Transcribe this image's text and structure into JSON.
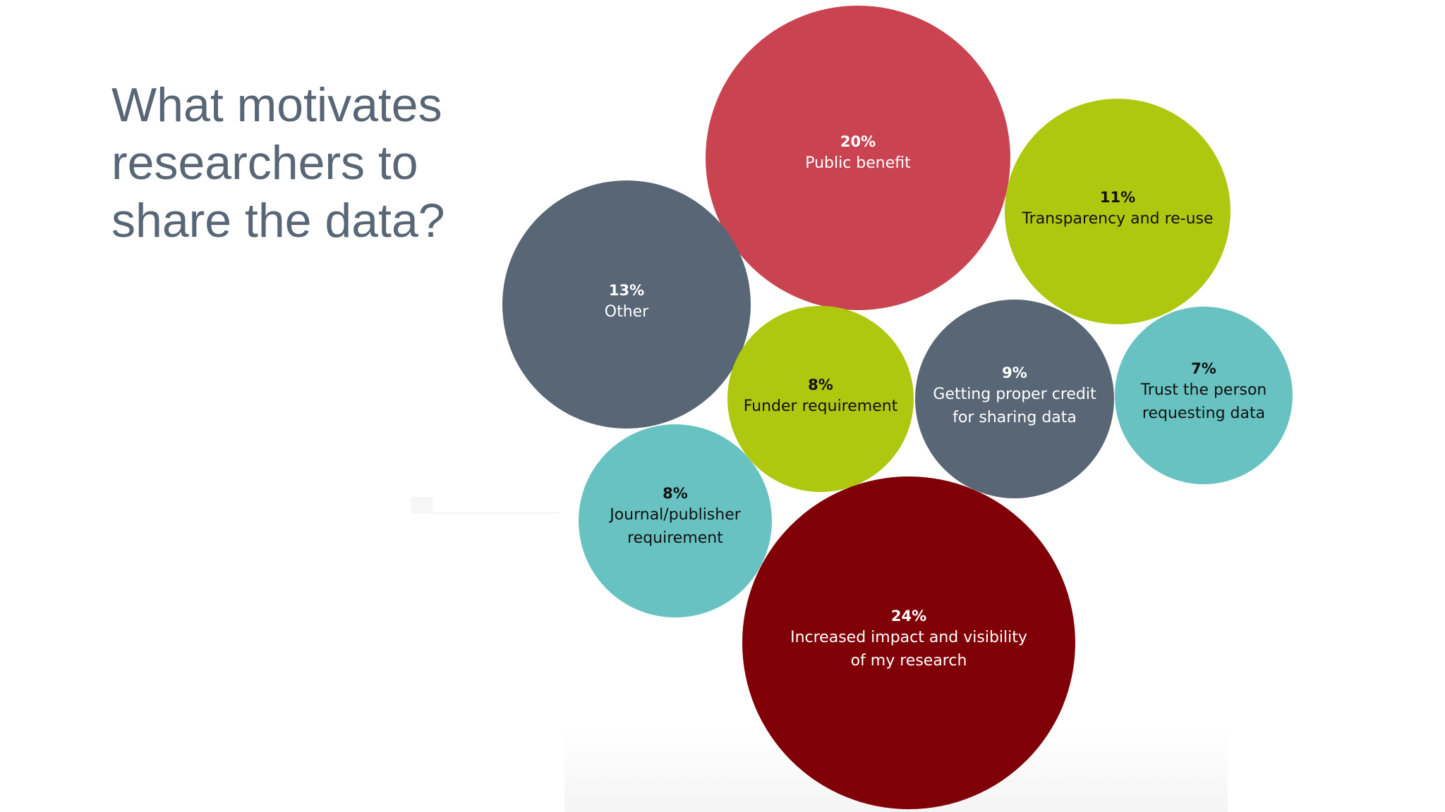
{
  "slide": {
    "title_lines": [
      "What motivates",
      "researchers to",
      "share the data?"
    ]
  },
  "colors": {
    "title": "#586675",
    "crimson": "#c94450",
    "dark_red": "#800007",
    "lime": "#adc80e",
    "slate": "#586675",
    "teal": "#69c2c2"
  },
  "chart_data": {
    "type": "bubble",
    "title": "",
    "series": [
      {
        "label": "Public benefit",
        "pct": "20%",
        "value": 20,
        "color": "#c94450",
        "text_color": "#ffffff",
        "label_lines": [
          "Public benefit"
        ]
      },
      {
        "label": "Transparency and re-use",
        "pct": "11%",
        "value": 11,
        "color": "#adc80e",
        "text_color": "#111111",
        "label_lines": [
          "Transparency and re-use"
        ]
      },
      {
        "label": "Other",
        "pct": "13%",
        "value": 13,
        "color": "#586675",
        "text_color": "#ffffff",
        "label_lines": [
          "Other"
        ]
      },
      {
        "label": "Funder requirement",
        "pct": "8%",
        "value": 8,
        "color": "#adc80e",
        "text_color": "#111111",
        "label_lines": [
          "Funder requirement"
        ]
      },
      {
        "label": "Getting proper credit for sharing data",
        "pct": "9%",
        "value": 9,
        "color": "#586675",
        "text_color": "#ffffff",
        "label_lines": [
          "Getting proper credit",
          "for sharing data"
        ]
      },
      {
        "label": "Trust the person requesting data",
        "pct": "7%",
        "value": 7,
        "color": "#69c2c2",
        "text_color": "#111111",
        "label_lines": [
          "Trust the person",
          "requesting data"
        ]
      },
      {
        "label": "Journal/publisher requirement",
        "pct": "8%",
        "value": 8,
        "color": "#69c2c2",
        "text_color": "#111111",
        "label_lines": [
          "Journal/publisher",
          "requirement"
        ]
      },
      {
        "label": "Increased impact and visibility of my research",
        "pct": "24%",
        "value": 24,
        "color": "#800007",
        "text_color": "#ffffff",
        "label_lines": [
          "Increased impact and visibility",
          "of my research"
        ]
      }
    ]
  }
}
